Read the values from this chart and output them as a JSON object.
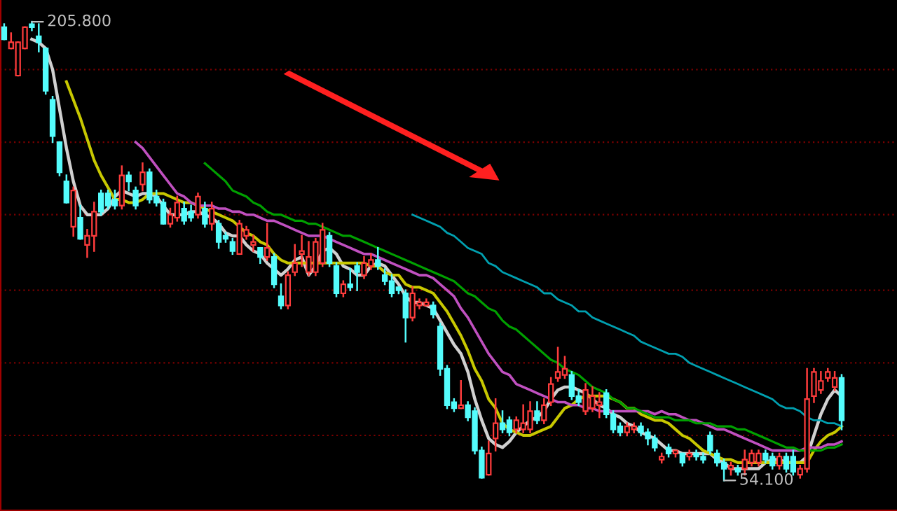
{
  "chart_data": {
    "type": "candlestick",
    "categories": [
      null,
      null,
      null,
      null,
      null,
      null,
      null,
      null,
      null,
      null,
      null,
      null,
      null,
      null,
      null,
      null,
      null,
      null,
      null,
      null,
      null,
      null,
      null,
      null,
      null,
      null,
      null,
      null,
      null,
      null,
      null,
      null,
      null,
      null,
      null,
      null,
      null,
      null,
      null,
      null,
      null,
      null,
      null,
      null,
      null,
      null,
      null,
      null,
      null,
      null,
      null,
      null,
      null,
      null,
      null,
      null,
      null,
      null,
      null,
      null,
      null,
      null,
      null,
      null,
      null,
      null,
      null,
      null,
      null,
      null,
      null,
      null,
      null,
      null,
      null,
      null,
      null,
      null,
      null,
      null,
      null,
      null,
      null,
      null,
      null,
      null,
      null,
      null,
      null,
      null,
      null,
      null,
      null,
      null,
      null,
      null,
      null,
      null,
      null,
      null,
      null,
      null,
      null,
      null,
      null,
      null,
      null,
      null,
      null,
      null,
      null,
      null,
      null,
      null,
      null,
      null,
      null,
      null,
      null,
      null,
      null,
      null
    ],
    "ohlc": [
      [
        204,
        205,
        200,
        200
      ],
      [
        197,
        202,
        197,
        199
      ],
      [
        188,
        199,
        188,
        199
      ],
      [
        197,
        204,
        197,
        204
      ],
      [
        205,
        205.8,
        203,
        204
      ],
      [
        201,
        205,
        196,
        199
      ],
      [
        197,
        197,
        182,
        183
      ],
      [
        180,
        181,
        166,
        168
      ],
      [
        166,
        166,
        155,
        156
      ],
      [
        153,
        155,
        146,
        146
      ],
      [
        138,
        151,
        135,
        150
      ],
      [
        141,
        145,
        134,
        134
      ],
      [
        132,
        137,
        128,
        135
      ],
      [
        135,
        146,
        130,
        143
      ],
      [
        149,
        150,
        142,
        143
      ],
      [
        149,
        150,
        144,
        145
      ],
      [
        147,
        150,
        144,
        145
      ],
      [
        145,
        158,
        144,
        155
      ],
      [
        155,
        156,
        150,
        153
      ],
      [
        150,
        151,
        144,
        145
      ],
      [
        152,
        159,
        150,
        156
      ],
      [
        156,
        157,
        146,
        147
      ],
      [
        148,
        150,
        145,
        146
      ],
      [
        146,
        147,
        139,
        139
      ],
      [
        139,
        144,
        138,
        142
      ],
      [
        141,
        148,
        140,
        146
      ],
      [
        144,
        146,
        139,
        140
      ],
      [
        143,
        145,
        140,
        141
      ],
      [
        142,
        149,
        141,
        148
      ],
      [
        144,
        146,
        138,
        139
      ],
      [
        139,
        146,
        137,
        144
      ],
      [
        139,
        140,
        131,
        133
      ],
      [
        135,
        136,
        133,
        134
      ],
      [
        133,
        134,
        129,
        130
      ],
      [
        129,
        140,
        129,
        139
      ],
      [
        135,
        138,
        134,
        137
      ],
      [
        132,
        135,
        130,
        133
      ],
      [
        131,
        131,
        126,
        128
      ],
      [
        128,
        139,
        127,
        131
      ],
      [
        128,
        129,
        118,
        119
      ],
      [
        115,
        119,
        111,
        112
      ],
      [
        112,
        123,
        111,
        122
      ],
      [
        123,
        132,
        122,
        126
      ],
      [
        129,
        135,
        125,
        130
      ],
      [
        123,
        133,
        122,
        128
      ],
      [
        123,
        134,
        122,
        133
      ],
      [
        126,
        139,
        125,
        137
      ],
      [
        135,
        136,
        125,
        126
      ],
      [
        125,
        126,
        115,
        116
      ],
      [
        116,
        120,
        115,
        119
      ],
      [
        119,
        124,
        117,
        118
      ],
      [
        125,
        126,
        117,
        123
      ],
      [
        122,
        128,
        121,
        126
      ],
      [
        125,
        129,
        124,
        127
      ],
      [
        127,
        131,
        124,
        125
      ],
      [
        122,
        124,
        119,
        120
      ],
      [
        120,
        122,
        115,
        116
      ],
      [
        118,
        118,
        116,
        117
      ],
      [
        116,
        117,
        100,
        108
      ],
      [
        108,
        118,
        107,
        116
      ],
      [
        112,
        114,
        111,
        113
      ],
      [
        112,
        114,
        112,
        113
      ],
      [
        112,
        113,
        108,
        109
      ],
      [
        105,
        106,
        89,
        91
      ],
      [
        91,
        92,
        78,
        79
      ],
      [
        80,
        81,
        77,
        78
      ],
      [
        78,
        87,
        78,
        79
      ],
      [
        79,
        80,
        74,
        75
      ],
      [
        77,
        78,
        63,
        64
      ],
      [
        64,
        65,
        55,
        55
      ],
      [
        56,
        67,
        56,
        63
      ],
      [
        68,
        81,
        64,
        73
      ],
      [
        73,
        77,
        70,
        71
      ],
      [
        74,
        75,
        69,
        70
      ],
      [
        71,
        75,
        70,
        74
      ],
      [
        71,
        79,
        70,
        73
      ],
      [
        71,
        80,
        70,
        77
      ],
      [
        77,
        80,
        73,
        74
      ],
      [
        74,
        81,
        73,
        79
      ],
      [
        80,
        88,
        79,
        86
      ],
      [
        88,
        98,
        87,
        90
      ],
      [
        89,
        95,
        88,
        91
      ],
      [
        89,
        90,
        81,
        82
      ],
      [
        82,
        84,
        79,
        80
      ],
      [
        77,
        86,
        76,
        84
      ],
      [
        78,
        85,
        77,
        82
      ],
      [
        79,
        83,
        75,
        80
      ],
      [
        83,
        84,
        75,
        76
      ],
      [
        76,
        77,
        70,
        71
      ],
      [
        72,
        73,
        69,
        70
      ],
      [
        70,
        73,
        69,
        72
      ],
      [
        71,
        73,
        70,
        72
      ],
      [
        72,
        73,
        69,
        70
      ],
      [
        70,
        71,
        66,
        68
      ],
      [
        68,
        69,
        64,
        65
      ],
      [
        61,
        63,
        60,
        62
      ],
      [
        65,
        66,
        62,
        63
      ],
      [
        63,
        64,
        62,
        64
      ],
      [
        63,
        63,
        59,
        60
      ],
      [
        62,
        64,
        61,
        63
      ],
      [
        63,
        64,
        61,
        62
      ],
      [
        62,
        63,
        60,
        61
      ],
      [
        69,
        70,
        63,
        64
      ],
      [
        63,
        64,
        59,
        60
      ],
      [
        60,
        61,
        54.1,
        58
      ],
      [
        58,
        60,
        56,
        59
      ],
      [
        58,
        59,
        56,
        57
      ],
      [
        58,
        64,
        56,
        61
      ],
      [
        60,
        64,
        59,
        63
      ],
      [
        60,
        64,
        59,
        63
      ],
      [
        63,
        64,
        60,
        61
      ],
      [
        62,
        63,
        58,
        59
      ],
      [
        59,
        63,
        58,
        62
      ],
      [
        62,
        63,
        57,
        58
      ],
      [
        62,
        64,
        56,
        57
      ],
      [
        56,
        59,
        55,
        58
      ],
      [
        58,
        91,
        57,
        81
      ],
      [
        82,
        91,
        80,
        90
      ],
      [
        84,
        90,
        83,
        87
      ],
      [
        88,
        91,
        87,
        90
      ],
      [
        85,
        90,
        84,
        88
      ],
      [
        88,
        89,
        71,
        74
      ]
    ],
    "series": [
      {
        "type": "line",
        "color": "#d0d0d0",
        "values": [
          null,
          null,
          null,
          null,
          200,
          199,
          197,
          190,
          177,
          164,
          153,
          145,
          142,
          142,
          142,
          144,
          148,
          150,
          149,
          148,
          149,
          149,
          148,
          145,
          142,
          142,
          142,
          143,
          143,
          142,
          141,
          139,
          136,
          135,
          135,
          132,
          130,
          129,
          126,
          124,
          122,
          124,
          127,
          128,
          122,
          125,
          130,
          131,
          129,
          125,
          124,
          122,
          122,
          125,
          126,
          125,
          122,
          119,
          115,
          113,
          113,
          112,
          111,
          107,
          103,
          99,
          96,
          90,
          81,
          74,
          68,
          66,
          65,
          67,
          70,
          72,
          74,
          75,
          77,
          81,
          84,
          85,
          85,
          84,
          83,
          81,
          79,
          78,
          76,
          75,
          73,
          72,
          70,
          69,
          68,
          66,
          64,
          64,
          63,
          63,
          63,
          63,
          63,
          61,
          60,
          58,
          58,
          58,
          58,
          58,
          60,
          61,
          61,
          60,
          60,
          60,
          62,
          69,
          76,
          81,
          84,
          82
        ]
      },
      {
        "type": "line",
        "color": "#c8c800",
        "values": [
          null,
          null,
          null,
          null,
          null,
          null,
          null,
          null,
          null,
          186,
          180,
          174,
          167,
          160,
          155,
          151,
          147,
          147,
          146,
          146,
          147,
          149,
          149,
          149,
          148,
          147,
          146,
          146,
          145,
          144,
          143,
          142,
          141,
          140,
          138,
          136,
          135,
          133,
          132,
          129,
          127,
          126,
          126,
          126,
          126,
          126,
          126,
          126,
          126,
          126,
          126,
          126,
          126,
          125,
          125,
          123,
          122,
          122,
          119,
          118,
          118,
          117,
          116,
          113,
          110,
          106,
          102,
          97,
          91,
          87,
          81,
          78,
          73,
          71,
          70,
          69,
          69,
          70,
          71,
          72,
          75,
          78,
          79,
          81,
          82,
          82,
          82,
          82,
          81,
          80,
          78,
          78,
          76,
          75,
          74,
          74,
          73,
          71,
          69,
          68,
          66,
          64,
          63,
          62,
          61,
          61,
          60,
          60,
          60,
          60,
          60,
          60,
          60,
          60,
          60,
          60,
          60,
          64,
          67,
          69,
          70,
          72
        ]
      },
      {
        "type": "line",
        "color": "#c050c0",
        "values": [
          null,
          null,
          null,
          null,
          null,
          null,
          null,
          null,
          null,
          null,
          null,
          null,
          null,
          null,
          null,
          null,
          null,
          null,
          null,
          166,
          164,
          161,
          158,
          155,
          152,
          149,
          148,
          146,
          145,
          145,
          145,
          144,
          144,
          143,
          143,
          142,
          142,
          141,
          140,
          140,
          139,
          138,
          137,
          136,
          135,
          135,
          135,
          134,
          133,
          132,
          131,
          130,
          129,
          129,
          128,
          127,
          126,
          125,
          124,
          123,
          122,
          122,
          121,
          119,
          117,
          115,
          111,
          108,
          104,
          100,
          96,
          93,
          90,
          89,
          86,
          85,
          84,
          83,
          82,
          81,
          80,
          80,
          79,
          79,
          78,
          78,
          77,
          77,
          77,
          77,
          77,
          77,
          77,
          77,
          76,
          77,
          76,
          76,
          75,
          74,
          74,
          73,
          72,
          71,
          71,
          70,
          69,
          68,
          67,
          66,
          65,
          64,
          64,
          64,
          64,
          64,
          65,
          65,
          65,
          66,
          66,
          67
        ]
      },
      {
        "type": "line",
        "color": "#00a000",
        "values": [
          null,
          null,
          null,
          null,
          null,
          null,
          null,
          null,
          null,
          null,
          null,
          null,
          null,
          null,
          null,
          null,
          null,
          null,
          null,
          null,
          null,
          null,
          null,
          null,
          null,
          null,
          null,
          null,
          null,
          159,
          157,
          155,
          153,
          150,
          149,
          148,
          146,
          145,
          143,
          142,
          142,
          141,
          140,
          140,
          139,
          139,
          138,
          137,
          136,
          135,
          135,
          134,
          133,
          132,
          131,
          130,
          129,
          128,
          127,
          126,
          125,
          124,
          123,
          122,
          121,
          120,
          118,
          116,
          115,
          113,
          111,
          110,
          107,
          105,
          104,
          102,
          100,
          98,
          96,
          94,
          93,
          91,
          90,
          89,
          87,
          85,
          84,
          83,
          81,
          80,
          78,
          78,
          77,
          76,
          75,
          75,
          75,
          74,
          74,
          74,
          73,
          73,
          73,
          72,
          72,
          72,
          71,
          71,
          70,
          69,
          68,
          67,
          66,
          65,
          65,
          64,
          64,
          64,
          64,
          65,
          65,
          66
        ]
      },
      {
        "type": "line",
        "color": "#00a0b0",
        "values": [
          null,
          null,
          null,
          null,
          null,
          null,
          null,
          null,
          null,
          null,
          null,
          null,
          null,
          null,
          null,
          null,
          null,
          null,
          null,
          null,
          null,
          null,
          null,
          null,
          null,
          null,
          null,
          null,
          null,
          null,
          null,
          null,
          null,
          null,
          null,
          null,
          null,
          null,
          null,
          null,
          null,
          null,
          null,
          null,
          null,
          null,
          null,
          null,
          null,
          null,
          null,
          null,
          null,
          null,
          null,
          null,
          null,
          null,
          null,
          142,
          141,
          140,
          139,
          138,
          136,
          135,
          133,
          131,
          130,
          129,
          126,
          125,
          123,
          122,
          121,
          120,
          119,
          118,
          116,
          116,
          114,
          113,
          112,
          110,
          110,
          108,
          107,
          106,
          105,
          104,
          103,
          102,
          100,
          99,
          98,
          97,
          96,
          96,
          95,
          93,
          92,
          91,
          90,
          89,
          88,
          87,
          86,
          85,
          84,
          83,
          82,
          81,
          79,
          78,
          78,
          77,
          75,
          74,
          74,
          73,
          73,
          72
        ]
      }
    ],
    "ylim": [
      44,
      213
    ],
    "yticks": [
      {
        "value": 190,
        "label": null
      },
      {
        "value": 166,
        "label": null
      },
      {
        "value": 142,
        "label": null
      },
      {
        "value": 117,
        "label": null
      },
      {
        "value": 93,
        "label": null
      },
      {
        "value": 69,
        "label": null
      }
    ],
    "grid": "y",
    "legend": false,
    "annotations": [
      "205.800",
      "54.100"
    ]
  }
}
